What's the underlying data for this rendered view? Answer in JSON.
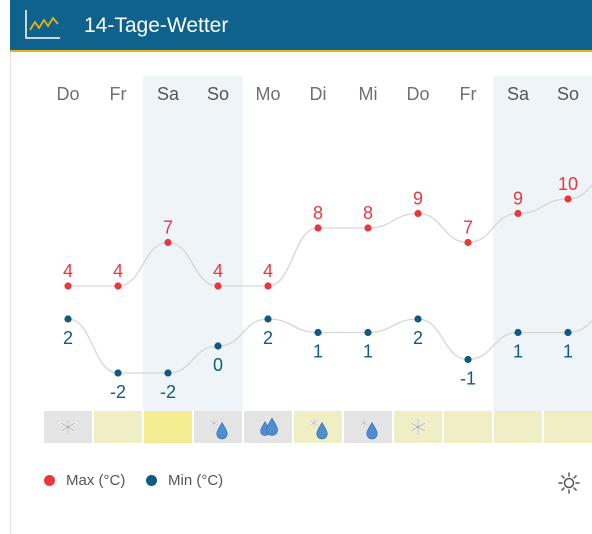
{
  "header": {
    "title": "14-Tage-Wetter",
    "icon": "line-chart-icon"
  },
  "days": [
    {
      "label": "Do",
      "weekend": false,
      "max": 4,
      "min": 2,
      "weather": "snow",
      "bar_color": "#e4e4e4"
    },
    {
      "label": "Fr",
      "weekend": false,
      "max": 4,
      "min": -2,
      "weather": "none",
      "bar_color": "#efeec4"
    },
    {
      "label": "Sa",
      "weekend": true,
      "max": 7,
      "min": -2,
      "weather": "none",
      "bar_color": "#f5ec91"
    },
    {
      "label": "So",
      "weekend": true,
      "max": 4,
      "min": 0,
      "weather": "snow-rain",
      "bar_color": "#e4e4e4"
    },
    {
      "label": "Mo",
      "weekend": false,
      "max": 4,
      "min": 2,
      "weather": "rain",
      "bar_color": "#e4e4e4"
    },
    {
      "label": "Di",
      "weekend": false,
      "max": 8,
      "min": 1,
      "weather": "snow-rain",
      "bar_color": "#efeec4"
    },
    {
      "label": "Mi",
      "weekend": false,
      "max": 8,
      "min": 1,
      "weather": "snow-rain",
      "bar_color": "#e4e4e4"
    },
    {
      "label": "Do",
      "weekend": false,
      "max": 9,
      "min": 2,
      "weather": "snow",
      "bar_color": "#efeec4"
    },
    {
      "label": "Fr",
      "weekend": false,
      "max": 7,
      "min": -1,
      "weather": "none",
      "bar_color": "#efeec4"
    },
    {
      "label": "Sa",
      "weekend": true,
      "max": 9,
      "min": 1,
      "weather": "none",
      "bar_color": "#efeec4"
    },
    {
      "label": "So",
      "weekend": true,
      "max": 10,
      "min": 1,
      "weather": "none",
      "bar_color": "#efeec4"
    }
  ],
  "legend": {
    "max_label": "Max (°C)",
    "min_label": "Min (°C)",
    "max_color": "#e8383d",
    "min_color": "#0d5c80"
  },
  "colors": {
    "max_line": "#d6d6d6",
    "min_line": "#d6d6d6",
    "max_text": "#e8383d",
    "min_text": "#0d5c80"
  },
  "toggle": {
    "icon": "sun-icon"
  }
}
